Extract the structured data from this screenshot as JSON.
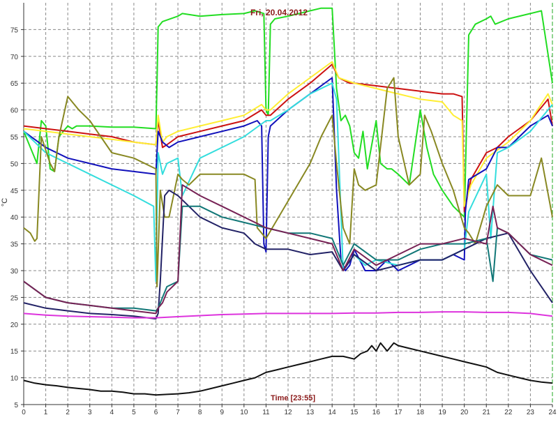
{
  "chart_data": {
    "type": "line",
    "title": "Fri, 20.04.2012",
    "xlabel": "Time [23:55]",
    "ylabel": "°C",
    "xlim": [
      0,
      24
    ],
    "ylim": [
      5,
      80
    ],
    "xticks": [
      "0",
      "1",
      "2",
      "3",
      "4",
      "5",
      "6",
      "7",
      "8",
      "9",
      "10",
      "11",
      "12",
      "13",
      "14",
      "15",
      "16",
      "17",
      "18",
      "19",
      "20",
      "21",
      "22",
      "23",
      "24"
    ],
    "yticks": [
      "5",
      "10",
      "15",
      "20",
      "25",
      "30",
      "35",
      "40",
      "45",
      "50",
      "55",
      "60",
      "65",
      "70",
      "75"
    ],
    "grid": true,
    "series": [
      {
        "color": "#22dd22",
        "x": [
          0,
          0.6,
          0.8,
          1,
          1.2,
          1.4,
          1.6,
          1.8,
          2,
          2.2,
          2.4,
          3,
          4,
          5,
          6,
          6.05,
          6.1,
          6.3,
          7,
          7.2,
          8,
          9,
          10,
          10.5,
          10.9,
          11,
          11.1,
          11.2,
          11.4,
          12,
          13,
          13.5,
          14,
          14.2,
          14.4,
          14.6,
          14.8,
          15,
          15.2,
          15.4,
          15.6,
          16,
          16.2,
          16.5,
          16.7,
          17,
          17.5,
          18,
          18.3,
          18.6,
          19,
          19.5,
          20,
          20.05,
          20.2,
          20.5,
          21,
          21.2,
          21.4,
          22,
          23,
          23.5,
          24
        ],
        "y": [
          56,
          50,
          58,
          57,
          49,
          48.5,
          55,
          56,
          57,
          56.5,
          57,
          57,
          56.8,
          56.8,
          56.5,
          65,
          75.5,
          76.5,
          77.5,
          78,
          77.5,
          77.8,
          78,
          78.5,
          78,
          60,
          59,
          76,
          77,
          77.5,
          78.5,
          79,
          79,
          64,
          58,
          59,
          57,
          52,
          51,
          56,
          49,
          58,
          50,
          49,
          49,
          48,
          46,
          60,
          53,
          48,
          45,
          42,
          40,
          48,
          74,
          76,
          77,
          77.5,
          76,
          77,
          78,
          78.5,
          65
        ]
      },
      {
        "color": "#cc1111",
        "x": [
          0,
          1,
          2,
          3,
          4,
          5,
          6,
          6.1,
          6.3,
          6.5,
          7,
          8,
          9,
          10,
          10.8,
          11,
          11.2,
          12,
          13,
          14,
          14.3,
          14.8,
          15,
          16,
          17,
          18,
          19,
          19.5,
          19.9,
          20,
          20.3,
          21,
          21.5,
          22,
          23,
          23.8,
          24
        ],
        "y": [
          57,
          56.5,
          56,
          55.5,
          55,
          54,
          53.5,
          58,
          53,
          53.5,
          55,
          56,
          57,
          58,
          60,
          59,
          59,
          62,
          65,
          68.5,
          66,
          65,
          65,
          64.5,
          64,
          63.5,
          63,
          63,
          62.5,
          41,
          47,
          52,
          53,
          55,
          58,
          62,
          57
        ]
      },
      {
        "color": "#ffee33",
        "x": [
          0,
          1,
          2,
          3,
          4,
          5,
          6,
          6.1,
          6.3,
          6.5,
          7,
          8,
          9,
          10,
          10.8,
          11,
          11.2,
          12,
          13,
          14,
          14.3,
          15,
          16,
          17,
          18,
          19,
          19.5,
          19.9,
          20,
          20.3,
          21,
          22,
          23,
          23.8,
          24
        ],
        "y": [
          56.5,
          56,
          55.5,
          55,
          54.5,
          54,
          53.5,
          59,
          54,
          55,
          56,
          57,
          58,
          59,
          61,
          60,
          60,
          63,
          66,
          69,
          66,
          65,
          64,
          63,
          62,
          61.5,
          59,
          58,
          42,
          46,
          51,
          54,
          58,
          63,
          61
        ]
      },
      {
        "color": "#1111bb",
        "x": [
          0,
          1,
          2,
          3,
          4,
          5,
          6,
          6.1,
          6.3,
          6.6,
          7,
          8,
          9,
          10,
          10.6,
          10.8,
          10.9,
          11,
          11.1,
          11.2,
          12,
          13,
          14,
          14.2,
          14.4,
          14.6,
          14.8,
          15,
          15.5,
          16,
          16.5,
          17,
          17.5,
          18,
          18.5,
          19,
          19.5,
          20,
          20.05,
          20.2,
          21,
          21.5,
          22,
          23,
          23.8,
          24
        ],
        "y": [
          56,
          53,
          51,
          50,
          49,
          48.5,
          48,
          56,
          54,
          53,
          54,
          55,
          56,
          57,
          58,
          57,
          35,
          33.5,
          55,
          57,
          60,
          63,
          66,
          45,
          32,
          30,
          31,
          34,
          30,
          30,
          32,
          30,
          31,
          32,
          32,
          32,
          33,
          32,
          41,
          47,
          49,
          53,
          53,
          57,
          59,
          57
        ]
      },
      {
        "color": "#33dddd",
        "x": [
          0,
          1,
          2,
          3,
          4,
          5,
          5.9,
          6,
          6.1,
          6.3,
          6.5,
          7,
          7.2,
          8,
          9,
          10,
          11,
          11.2,
          12,
          13,
          14,
          14.2,
          14.5,
          15,
          15.5,
          16,
          17,
          18,
          19,
          20,
          20.2,
          21,
          21.2,
          21.5,
          22,
          23,
          24
        ],
        "y": [
          56,
          52,
          50,
          48,
          46,
          44,
          42,
          28,
          52,
          48,
          50,
          51,
          44,
          51,
          53,
          55,
          58,
          58,
          60,
          63,
          65,
          62,
          30,
          33,
          31,
          32,
          31,
          32,
          32,
          34,
          41,
          48,
          36,
          52,
          53,
          56,
          61
        ]
      },
      {
        "color": "#888822",
        "x": [
          0,
          0.3,
          0.5,
          0.6,
          0.8,
          1.2,
          1.4,
          1.6,
          2,
          2.5,
          3,
          3.5,
          4,
          5,
          6,
          6.05,
          6.2,
          6.4,
          6.6,
          7,
          7.2,
          7.5,
          8,
          9,
          10,
          10.5,
          10.6,
          10.8,
          11,
          12,
          13,
          13.5,
          14,
          14.2,
          14.5,
          14.8,
          15,
          15.2,
          15.5,
          16,
          16.5,
          16.8,
          17,
          17.5,
          18,
          18.2,
          18.5,
          19,
          19.5,
          20,
          20.2,
          20.5,
          21,
          21.5,
          22,
          23,
          23.5,
          24
        ],
        "y": [
          38,
          37,
          35.5,
          36,
          55,
          50,
          48.5,
          55,
          62.5,
          60,
          58,
          55,
          52,
          51,
          49,
          27,
          45,
          40,
          40,
          48,
          47,
          46,
          48,
          48,
          48,
          47,
          38,
          37,
          36,
          43,
          50,
          55,
          59,
          50,
          38,
          35,
          49,
          46,
          45,
          46,
          64,
          66,
          55,
          46,
          48,
          59,
          56,
          50,
          45,
          38,
          37,
          35,
          42,
          46,
          44,
          44,
          51,
          40
        ]
      },
      {
        "color": "#222266",
        "x": [
          0,
          1,
          2,
          3,
          4,
          5,
          6,
          6.1,
          6.2,
          6.4,
          6.6,
          7,
          7.5,
          8,
          9,
          10,
          10.5,
          11,
          12,
          13,
          14,
          14.5,
          15,
          16,
          17,
          18,
          19,
          20,
          21,
          22,
          23,
          24
        ],
        "y": [
          24,
          23,
          22.5,
          22,
          21.8,
          21.5,
          21,
          22,
          28,
          44,
          45,
          44,
          42,
          40,
          38,
          37,
          35,
          34,
          34,
          33,
          33.5,
          30,
          33,
          30,
          31,
          32,
          32,
          34,
          36,
          37,
          30,
          24
        ]
      },
      {
        "color": "#117777",
        "x": [
          0,
          1,
          2,
          3,
          4,
          5,
          6,
          6.1,
          6.3,
          6.5,
          7,
          7.2,
          8,
          9,
          10,
          11,
          12,
          13,
          14,
          14.5,
          15,
          16,
          17,
          18,
          19,
          20,
          21,
          21.3,
          21.5,
          22,
          23,
          24
        ],
        "y": [
          28,
          25,
          24,
          23.5,
          23,
          23,
          22.5,
          23,
          25,
          27,
          28,
          42,
          42,
          40,
          39,
          38,
          37,
          37,
          36,
          31,
          35,
          32,
          32,
          34,
          35,
          35,
          36,
          28,
          38,
          37,
          33,
          32
        ]
      },
      {
        "color": "#772255",
        "x": [
          0,
          1,
          2,
          3,
          4,
          5,
          6,
          6.1,
          6.3,
          6.5,
          7,
          7.2,
          8,
          9,
          10,
          11,
          12,
          13,
          14,
          14.5,
          15,
          16,
          17,
          18,
          19,
          20,
          21,
          21.3,
          21.5,
          22,
          23,
          24
        ],
        "y": [
          28,
          25,
          24,
          23.5,
          23,
          22.5,
          22,
          23,
          24,
          26,
          28,
          46,
          44,
          42,
          40,
          38,
          37,
          36,
          35,
          30,
          34,
          31,
          33,
          35,
          35,
          36,
          35,
          42,
          38,
          37,
          33,
          31
        ]
      },
      {
        "color": "#dd33dd",
        "x": [
          0,
          1,
          2,
          3,
          4,
          5,
          6,
          7,
          8,
          9,
          10,
          11,
          12,
          13,
          14,
          15,
          16,
          17,
          18,
          19,
          20,
          21,
          22,
          23,
          24
        ],
        "y": [
          22,
          21.7,
          21.5,
          21.4,
          21.3,
          21.2,
          21.2,
          21.4,
          21.6,
          21.8,
          21.9,
          22,
          22,
          22,
          22,
          22.1,
          22.1,
          22.2,
          22.2,
          22.3,
          22.3,
          22.2,
          22.2,
          22,
          21.5
        ]
      },
      {
        "color": "#111111",
        "x": [
          0,
          0.5,
          1,
          1.5,
          2,
          2.5,
          3,
          3.5,
          4,
          4.5,
          5,
          5.5,
          6,
          6.5,
          7,
          7.5,
          8,
          8.5,
          9,
          9.5,
          10,
          10.5,
          11,
          11.5,
          12,
          12.5,
          13,
          13.5,
          14,
          14.5,
          15,
          15.3,
          15.6,
          15.8,
          16,
          16.2,
          16.5,
          16.8,
          17,
          17.5,
          18,
          18.5,
          19,
          19.5,
          20,
          20.5,
          21,
          21.5,
          22,
          22.5,
          23,
          23.5,
          24
        ],
        "y": [
          9.5,
          9,
          8.7,
          8.5,
          8.2,
          8,
          7.8,
          7.5,
          7.5,
          7.3,
          7,
          7,
          6.8,
          6.9,
          7,
          7.2,
          7.5,
          8,
          8.5,
          9,
          9.5,
          10,
          11,
          11.5,
          12,
          12.5,
          13,
          13.5,
          14,
          14,
          13.5,
          14.5,
          15,
          16,
          15,
          16.5,
          15,
          16.5,
          16,
          15.5,
          15,
          14.5,
          14,
          13.5,
          13,
          12.5,
          12,
          11,
          10.5,
          10,
          9.5,
          9.2,
          9
        ]
      }
    ]
  }
}
